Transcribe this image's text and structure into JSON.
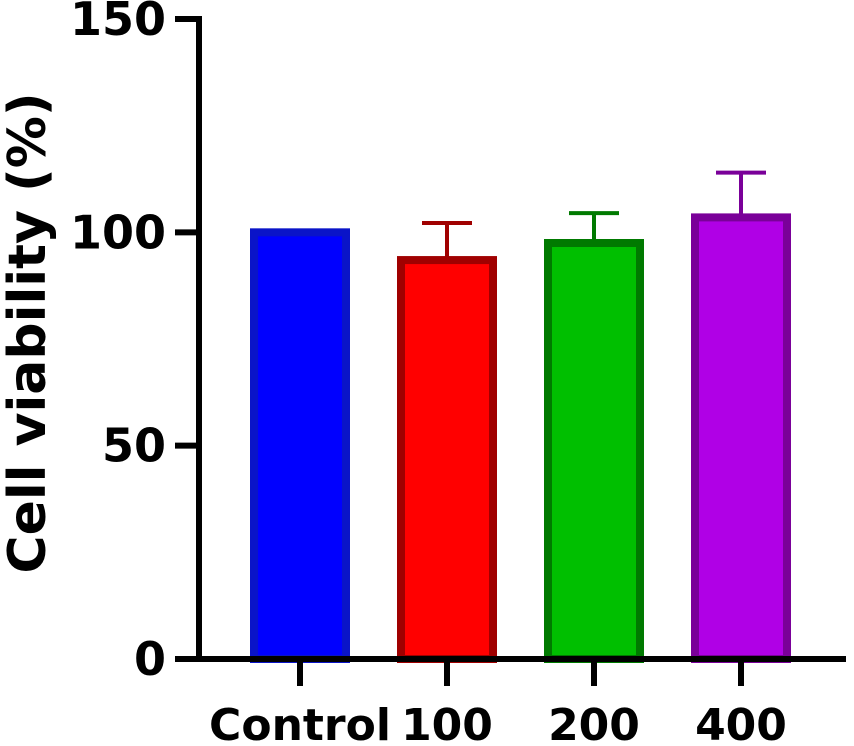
{
  "chart_data": {
    "type": "bar",
    "categories": [
      "Control",
      "100",
      "200",
      "400"
    ],
    "values": [
      100,
      93.5,
      97.5,
      103.5
    ],
    "errors": [
      0,
      8.7,
      7,
      10.5
    ],
    "ylabel": "Cell viability (%)",
    "xlabel": "",
    "ylim": [
      0,
      150
    ],
    "yticks": [
      "0",
      "50",
      "100",
      "150"
    ],
    "grid": false,
    "legend": "none",
    "colors": {
      "fill": [
        "#0000ff",
        "#ff0000",
        "#00bf00",
        "#b000e6"
      ],
      "edge": [
        "#0a14c8",
        "#a00000",
        "#007a00",
        "#7a0099"
      ]
    }
  }
}
